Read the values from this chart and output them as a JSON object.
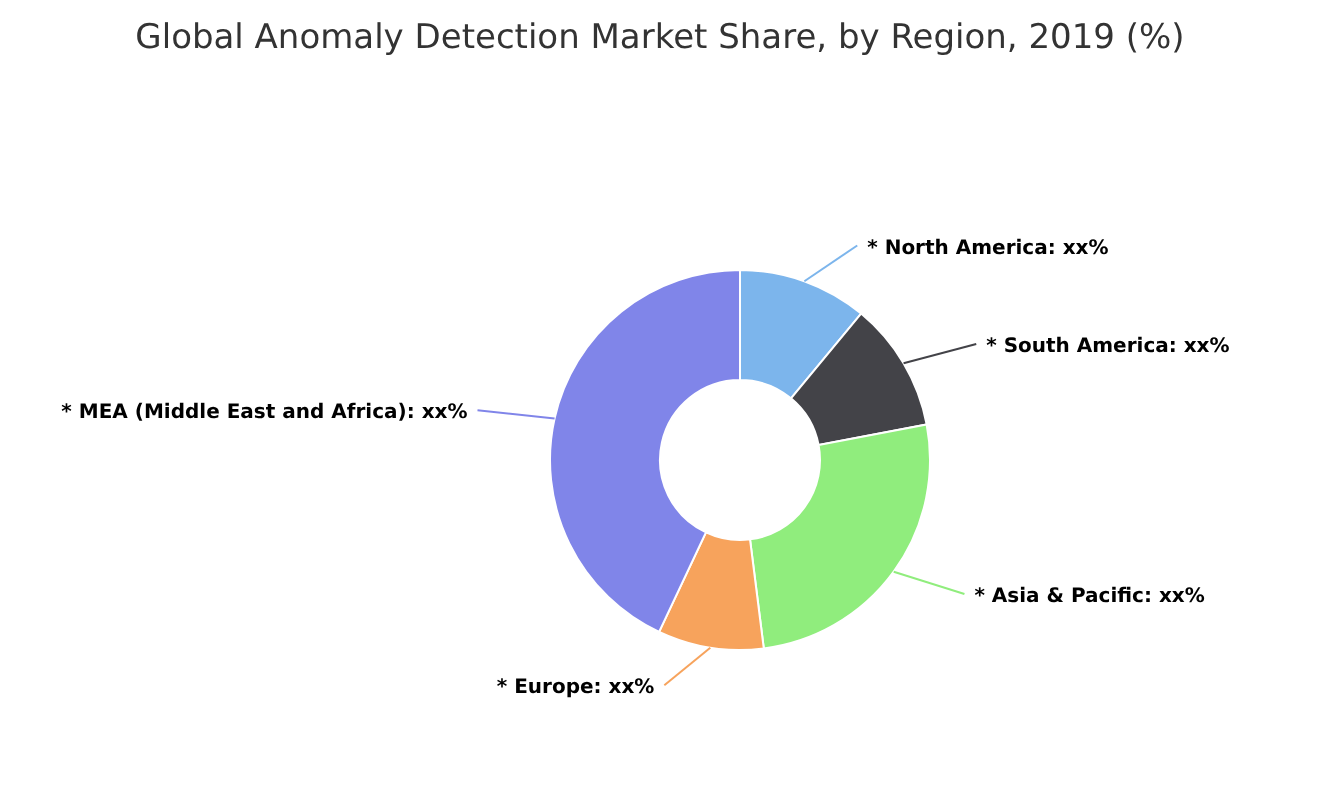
{
  "chart_data": {
    "type": "donut",
    "title": "Global Anomaly Detection Market Share, by Region, 2019 (%)",
    "categories": [
      "* North America: xx%",
      "* South America: xx%",
      "* Asia & Pacific: xx%",
      "* Europe: xx%",
      "* MEA (Middle East and Africa): xx%"
    ],
    "values": [
      11,
      11,
      26,
      9,
      43
    ],
    "colors": [
      "#7cb5ec",
      "#434348",
      "#90ed7d",
      "#f7a35c",
      "#8085e9"
    ]
  }
}
